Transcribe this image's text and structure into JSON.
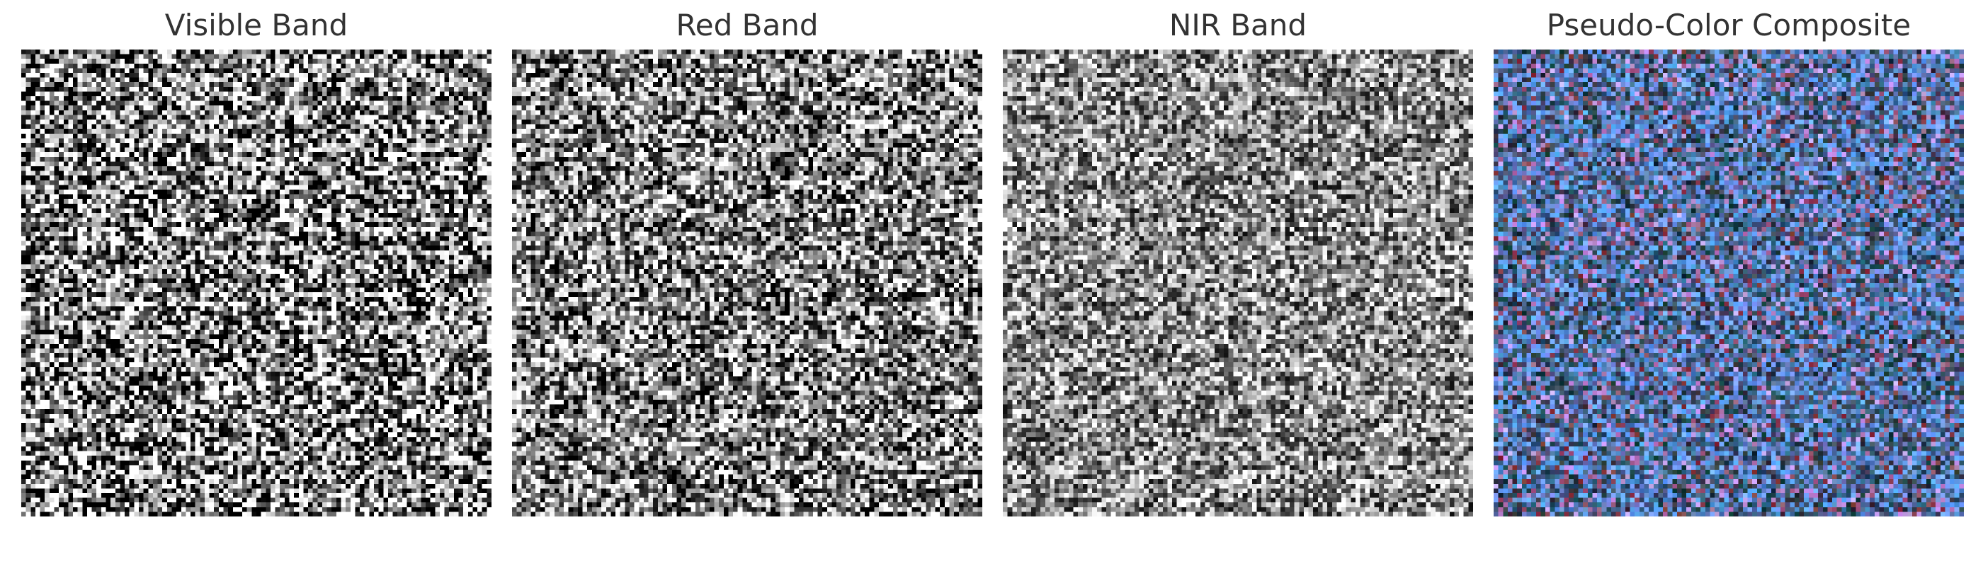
{
  "panels": [
    {
      "title": "Visible Band",
      "style": "gray",
      "seed": 11,
      "contrast": 1.6,
      "mean": 0.5
    },
    {
      "title": "Red Band",
      "style": "gray",
      "seed": 23,
      "contrast": 1.3,
      "mean": 0.52
    },
    {
      "title": "NIR Band",
      "style": "gray",
      "seed": 37,
      "contrast": 1.0,
      "mean": 0.55
    },
    {
      "title": "Pseudo-Color Composite",
      "style": "composite",
      "seed": 49,
      "contrast": 1.0,
      "mean": 0.5
    }
  ],
  "grid_cells": 100,
  "colors": {
    "title_text": "#333333",
    "composite_tint": "#4f86d9"
  }
}
